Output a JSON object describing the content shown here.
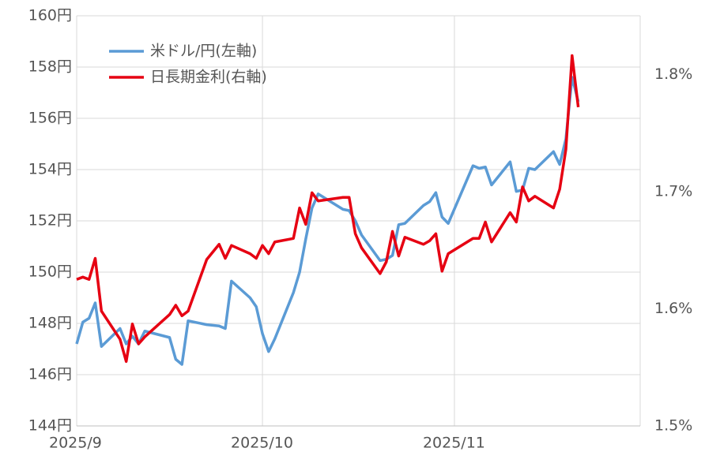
{
  "chart_data": {
    "type": "line",
    "x": [
      0,
      1,
      2,
      3,
      4,
      7,
      8,
      9,
      10,
      11,
      15,
      16,
      17,
      18,
      21,
      23,
      24,
      25,
      28,
      29,
      30,
      31,
      32,
      35,
      36,
      37,
      38,
      39,
      43,
      44,
      45,
      46,
      49,
      50,
      51,
      52,
      53,
      56,
      57,
      58,
      59,
      60,
      64,
      65,
      66,
      67,
      70,
      71,
      72,
      73,
      74,
      77,
      78,
      79,
      80,
      81
    ],
    "xlim": [
      0,
      91
    ],
    "xticks": [
      {
        "value": 0,
        "label": "2025/9"
      },
      {
        "value": 30,
        "label": "2025/10"
      },
      {
        "value": 61,
        "label": "2025/11"
      }
    ],
    "ylim": [
      144,
      160
    ],
    "yticks": [
      {
        "value": 144,
        "label": "144円"
      },
      {
        "value": 146,
        "label": "146円"
      },
      {
        "value": 148,
        "label": "148円"
      },
      {
        "value": 150,
        "label": "150円"
      },
      {
        "value": 152,
        "label": "152円"
      },
      {
        "value": 154,
        "label": "154円"
      },
      {
        "value": 156,
        "label": "156円"
      },
      {
        "value": 158,
        "label": "158円"
      },
      {
        "value": 160,
        "label": "160円"
      }
    ],
    "y2lim": [
      1.5,
      1.85
    ],
    "y2ticks": [
      {
        "value": 1.5,
        "label": "1.5%"
      },
      {
        "value": 1.6,
        "label": "1.6%"
      },
      {
        "value": 1.7,
        "label": "1.7%"
      },
      {
        "value": 1.8,
        "label": "1.8%"
      }
    ],
    "grid": true,
    "legend": "upper left",
    "series": [
      {
        "name": "米ドル/円(左軸)",
        "color": "#5b9bd5",
        "values": [
          147.2,
          148.05,
          148.2,
          148.8,
          147.1,
          147.8,
          147.2,
          147.5,
          147.2,
          147.7,
          147.45,
          146.6,
          146.4,
          148.1,
          147.95,
          147.9,
          147.8,
          149.65,
          149.0,
          148.65,
          147.6,
          146.9,
          147.4,
          149.2,
          150.0,
          151.3,
          152.5,
          153.05,
          152.45,
          152.4,
          152.0,
          151.45,
          150.45,
          150.5,
          150.65,
          151.85,
          151.9,
          152.6,
          152.75,
          153.1,
          152.15,
          151.9,
          154.15,
          154.05,
          154.1,
          153.4,
          154.3,
          153.15,
          153.2,
          154.05,
          154.0,
          154.7,
          154.2,
          155.2,
          157.6,
          156.65
        ]
      },
      {
        "name": "日長期金利(右軸)",
        "color": "#e60012",
        "axis": "y2",
        "values": [
          1.625,
          1.627,
          1.625,
          1.643,
          1.598,
          1.574,
          1.555,
          1.587,
          1.57,
          1.576,
          1.595,
          1.603,
          1.594,
          1.598,
          1.642,
          1.655,
          1.643,
          1.654,
          1.647,
          1.643,
          1.654,
          1.647,
          1.657,
          1.66,
          1.686,
          1.672,
          1.699,
          1.692,
          1.695,
          1.695,
          1.664,
          1.652,
          1.63,
          1.64,
          1.666,
          1.645,
          1.661,
          1.655,
          1.658,
          1.664,
          1.632,
          1.647,
          1.66,
          1.66,
          1.674,
          1.657,
          1.682,
          1.674,
          1.704,
          1.692,
          1.696,
          1.686,
          1.702,
          1.736,
          1.816,
          1.772
        ]
      }
    ]
  }
}
